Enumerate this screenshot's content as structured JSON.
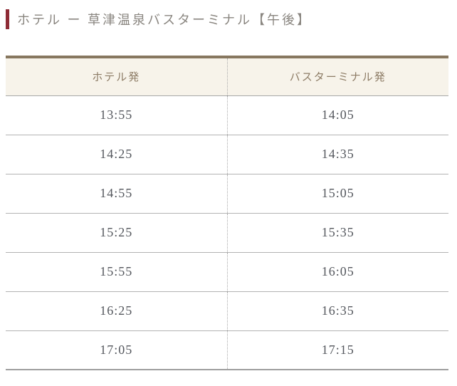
{
  "page": {
    "title": "ホテル ー 草津温泉バスターミナル【午後】"
  },
  "colors": {
    "accent_bar": "#8e2b35",
    "table_top_border": "#87775f",
    "header_background": "#f7f3ea",
    "header_text": "#8d7c66",
    "time_text": "#54575d",
    "row_separator": "#b3b3b3"
  },
  "timetable": {
    "columns": [
      "ホテル発",
      "バスターミナル発"
    ],
    "rows": [
      [
        "13:55",
        "14:05"
      ],
      [
        "14:25",
        "14:35"
      ],
      [
        "14:55",
        "15:05"
      ],
      [
        "15:25",
        "15:35"
      ],
      [
        "15:55",
        "16:05"
      ],
      [
        "16:25",
        "16:35"
      ],
      [
        "17:05",
        "17:15"
      ]
    ]
  }
}
